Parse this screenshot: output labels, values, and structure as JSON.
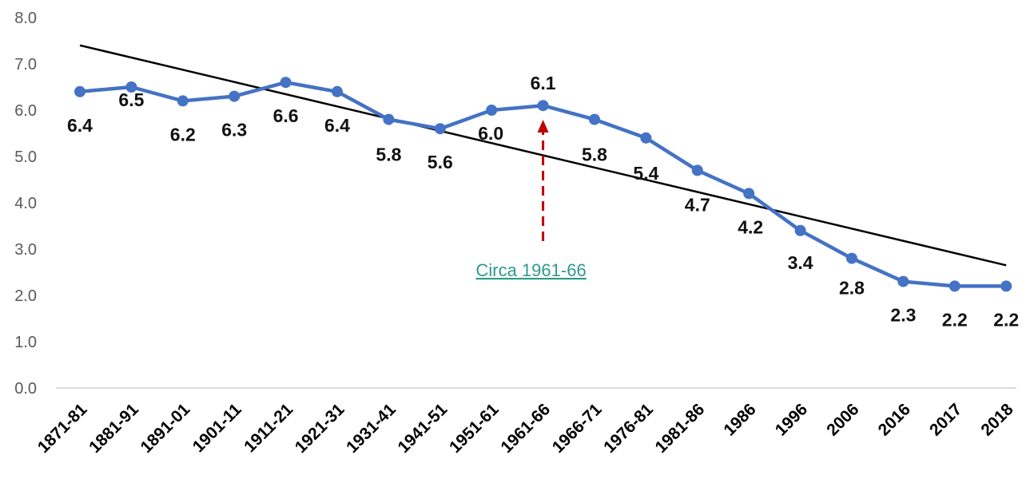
{
  "chart_data": {
    "type": "line",
    "title": "",
    "xlabel": "",
    "ylabel": "",
    "categories": [
      "1871-81",
      "1881-91",
      "1891-01",
      "1901-11",
      "1911-21",
      "1921-31",
      "1931-41",
      "1941-51",
      "1951-61",
      "1961-66",
      "1966-71",
      "1976-81",
      "1981-86",
      "1986",
      "1996",
      "2006",
      "2016",
      "2017",
      "2018"
    ],
    "series": [
      {
        "values": [
          6.4,
          6.5,
          6.2,
          6.3,
          6.6,
          6.4,
          5.8,
          5.6,
          6.0,
          6.1,
          5.8,
          5.4,
          4.7,
          4.2,
          3.4,
          2.8,
          2.3,
          2.2,
          2.2
        ],
        "labels": [
          "6.4",
          "6.5",
          "6.2",
          "6.3",
          "6.6",
          "6.4",
          "5.8",
          "5.6",
          "6.0",
          "6.1",
          "5.8",
          "5.4",
          "4.7",
          "4.2",
          "3.4",
          "2.8",
          "2.3",
          "2.2",
          "2.2"
        ],
        "color": "#4472C4"
      }
    ],
    "trendline": {
      "type": "linear",
      "start_value": 7.4,
      "end_value": 2.65,
      "color": "#000000"
    },
    "ylim": [
      0,
      8
    ],
    "yticks": [
      "0.0",
      "1.0",
      "2.0",
      "3.0",
      "4.0",
      "5.0",
      "6.0",
      "7.0",
      "8.0"
    ],
    "grid": false,
    "legend": "none",
    "annotation": {
      "text": "Circa 1961-66",
      "category": "1961-66",
      "text_color": "#2E9A8C",
      "arrow_color": "#C00000"
    }
  }
}
